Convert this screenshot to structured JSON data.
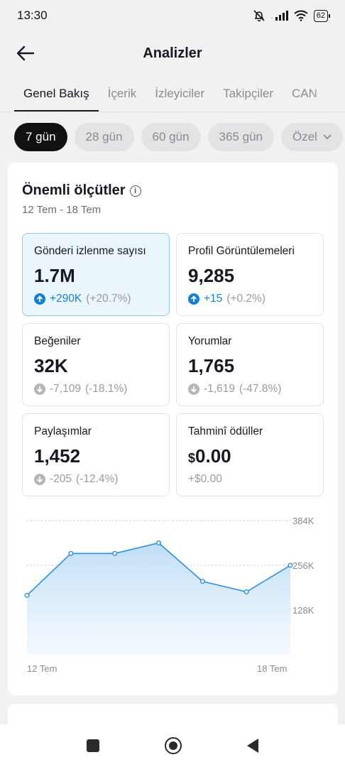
{
  "status_bar": {
    "time": "13:30",
    "battery": "62"
  },
  "header": {
    "title": "Analizler"
  },
  "tabs": [
    {
      "label": "Genel Bakış",
      "active": true
    },
    {
      "label": "İçerik",
      "active": false
    },
    {
      "label": "İzleyiciler",
      "active": false
    },
    {
      "label": "Takipçiler",
      "active": false
    },
    {
      "label": "CAN",
      "active": false
    }
  ],
  "ranges": [
    {
      "label": "7 gün",
      "active": true
    },
    {
      "label": "28 gün",
      "active": false
    },
    {
      "label": "60 gün",
      "active": false
    },
    {
      "label": "365 gün",
      "active": false
    },
    {
      "label": "Özel",
      "active": false
    }
  ],
  "key_metrics": {
    "title": "Önemli ölçütler",
    "date_range": "12 Tem - 18 Tem",
    "items": [
      {
        "label": "Gönderi izlenme sayısı",
        "value": "1.7M",
        "change": "+290K",
        "pct": "(+20.7%)",
        "direction": "up",
        "selected": true
      },
      {
        "label": "Profil Görüntülemeleri",
        "value": "9,285",
        "change": "+15",
        "pct": "(+0.2%)",
        "direction": "up",
        "selected": false
      },
      {
        "label": "Beğeniler",
        "value": "32K",
        "change": "-7,109",
        "pct": "(-18.1%)",
        "direction": "down",
        "selected": false
      },
      {
        "label": "Yorumlar",
        "value": "1,765",
        "change": "-1,619",
        "pct": "(-47.8%)",
        "direction": "down",
        "selected": false
      },
      {
        "label": "Paylaşımlar",
        "value": "1,452",
        "change": "-205",
        "pct": "(-12.4%)",
        "direction": "down",
        "selected": false
      },
      {
        "label": "Tahminî ödüller",
        "currency": "$",
        "value": "0.00",
        "change": "+$0.00",
        "pct": "",
        "direction": "none",
        "selected": false
      }
    ]
  },
  "chart_data": {
    "type": "area",
    "x": [
      "12 Tem",
      "13 Tem",
      "14 Tem",
      "15 Tem",
      "16 Tem",
      "17 Tem",
      "18 Tem"
    ],
    "x_tick_labels": [
      "12 Tem",
      "18 Tem"
    ],
    "values": [
      170000,
      290000,
      290000,
      320000,
      210000,
      180000,
      256000
    ],
    "y_ticks": [
      128000,
      256000,
      384000
    ],
    "y_tick_labels": [
      "128K",
      "256K",
      "384K"
    ],
    "ylim": [
      0,
      384000
    ],
    "grid": true,
    "line_color": "#2f8fdf",
    "fill_color": "#cfe6f8"
  }
}
